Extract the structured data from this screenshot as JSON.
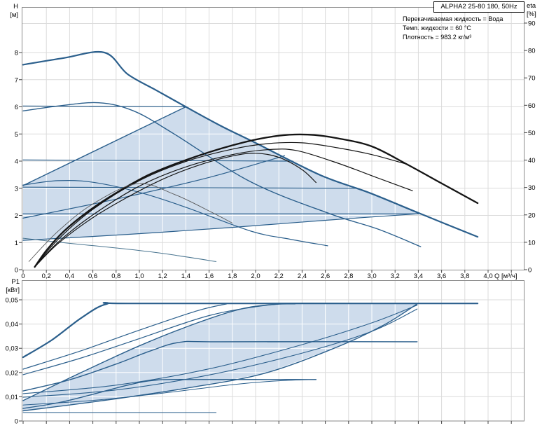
{
  "window": {
    "title_box_label": "ALPHA2 25-80 180, 50Hz"
  },
  "info_panel": {
    "lines": [
      "Перекачиваемая жидкость = Вода",
      "Темп. жидкости = 60 °C",
      "Плотность = 983.2 кг/м³"
    ]
  },
  "axis_titles": {
    "head": "H",
    "head_unit": "[м]",
    "eff": "eta",
    "eff_unit": "[%]",
    "flow_unit_label": "Q [м³/ч]",
    "power": "P1",
    "power_unit": "[кВт]"
  },
  "colors": {
    "curve_blue": "#2B5F8C",
    "curve_black": "#141414",
    "curve_faint": "#555555",
    "curve_min": "#4A7590",
    "fill_light_blue": "#CEDCEC",
    "grid": "#DBDBDB",
    "grid_in_fill": "#FFFFFF",
    "frame": "#8A8A8A",
    "tick": "#444444",
    "text": "#000000"
  },
  "chart_data": [
    {
      "type": "line",
      "panel": "qh",
      "title": "ALPHA2 25-80 180, 50Hz",
      "xlabel": "Q [м³/ч]",
      "ylabel_left": "H [м]",
      "ylabel_right": "eta [%]",
      "xlim": [
        0,
        4.31
      ],
      "ylim_left": [
        0,
        9.68
      ],
      "ylim_right": [
        0,
        95.9
      ],
      "grid": true,
      "x_tick_step": 0.2,
      "x_tick_labels": [
        "0",
        "0,2",
        "0,4",
        "0,6",
        "0,8",
        "1,0",
        "1,2",
        "1,4",
        "1,6",
        "1,8",
        "2,0",
        "2,2",
        "2,4",
        "2,6",
        "2,8",
        "3,0",
        "3,2",
        "3,4",
        "3,6",
        "3,8",
        "4,0"
      ],
      "y_tick_labels_left": [
        "0",
        "1",
        "2",
        "3",
        "4",
        "5",
        "6",
        "7",
        "8"
      ],
      "y_tick_labels_right": [
        "0",
        "10",
        "20",
        "30",
        "40",
        "50",
        "60",
        "70",
        "80",
        "90"
      ],
      "control_range_polygon": [
        [
          0,
          1.08
        ],
        [
          0,
          3.1
        ],
        [
          1.4,
          6.0
        ],
        [
          2.0,
          4.67
        ],
        [
          2.56,
          3.48
        ],
        [
          2.98,
          2.83
        ],
        [
          3.4,
          2.06
        ],
        [
          2.6,
          1.82
        ],
        [
          1.8,
          1.56
        ],
        [
          0.9,
          1.3
        ]
      ],
      "series": [
        {
          "name": "qh-max-speed-III",
          "axis": "H",
          "color": "blue",
          "width": 2.2,
          "points": [
            [
              0,
              7.55
            ],
            [
              0.35,
              7.8
            ],
            [
              0.7,
              8.0
            ],
            [
              0.9,
              7.2
            ],
            [
              1.15,
              6.6
            ],
            [
              1.4,
              6.0
            ],
            [
              1.7,
              5.3
            ],
            [
              2.0,
              4.67
            ],
            [
              2.56,
              3.48
            ],
            [
              2.98,
              2.83
            ],
            [
              3.43,
              2.04
            ],
            [
              3.91,
              1.21
            ]
          ]
        },
        {
          "name": "qh-speed-II",
          "axis": "H",
          "color": "blue",
          "width": 1.4,
          "points": [
            [
              0,
              5.85
            ],
            [
              0.3,
              6.03
            ],
            [
              0.65,
              6.15
            ],
            [
              0.95,
              5.85
            ],
            [
              1.3,
              5.0
            ],
            [
              1.96,
              3.23
            ],
            [
              2.64,
              2.06
            ],
            [
              3.05,
              1.5
            ],
            [
              3.42,
              0.85
            ]
          ]
        },
        {
          "name": "qh-speed-I",
          "axis": "H",
          "color": "blue",
          "width": 1.2,
          "points": [
            [
              0,
              3.12
            ],
            [
              0.3,
              3.28
            ],
            [
              0.6,
              3.22
            ],
            [
              1.0,
              2.85
            ],
            [
              1.4,
              2.3
            ],
            [
              1.96,
              1.42
            ],
            [
              2.3,
              1.12
            ],
            [
              2.62,
              0.88
            ]
          ]
        },
        {
          "name": "prop-pressure-3",
          "axis": "H",
          "color": "blue",
          "width": 1.4,
          "points": [
            [
              0,
              3.1
            ],
            [
              1.4,
              6.0
            ]
          ]
        },
        {
          "name": "prop-pressure-2",
          "axis": "H",
          "color": "blue",
          "width": 1.2,
          "points": [
            [
              0,
              1.9
            ],
            [
              0.8,
              2.6
            ],
            [
              1.6,
              3.4
            ],
            [
              2.25,
              4.2
            ]
          ]
        },
        {
          "name": "prop-pressure-1",
          "axis": "H",
          "color": "blue",
          "width": 1.2,
          "points": [
            [
              0,
              1.08
            ],
            [
              0.9,
              1.3
            ],
            [
              1.8,
              1.56
            ],
            [
              2.6,
              1.82
            ],
            [
              3.4,
              2.06
            ]
          ]
        },
        {
          "name": "const-pressure-6m",
          "axis": "H",
          "color": "blue",
          "width": 1.2,
          "points": [
            [
              0,
              6.03
            ],
            [
              1.4,
              6.0
            ]
          ]
        },
        {
          "name": "const-pressure-4m",
          "axis": "H",
          "color": "blue",
          "width": 1.2,
          "points": [
            [
              0,
              4.04
            ],
            [
              2.32,
              4.0
            ]
          ]
        },
        {
          "name": "const-pressure-3m",
          "axis": "H",
          "color": "blue",
          "width": 1.2,
          "points": [
            [
              0,
              3.04
            ],
            [
              2.86,
              3.0
            ]
          ]
        },
        {
          "name": "const-pressure-2m",
          "axis": "H",
          "color": "blue",
          "width": 1.2,
          "points": [
            [
              0,
              2.06
            ],
            [
              3.4,
              2.06
            ]
          ]
        },
        {
          "name": "qh-min-speed",
          "axis": "H",
          "color": "min",
          "width": 1,
          "points": [
            [
              0,
              1.16
            ],
            [
              0.4,
              0.97
            ],
            [
              0.8,
              0.8
            ],
            [
              1.2,
              0.6
            ],
            [
              1.66,
              0.3
            ]
          ]
        },
        {
          "name": "eta-max",
          "axis": "eta",
          "color": "black",
          "width": 2.3,
          "points": [
            [
              0.1,
              1
            ],
            [
              0.2,
              7
            ],
            [
              0.35,
              14
            ],
            [
              0.55,
              21
            ],
            [
              0.8,
              28
            ],
            [
              1.1,
              35
            ],
            [
              1.5,
              41.5
            ],
            [
              1.9,
              46.5
            ],
            [
              2.2,
              48.9
            ],
            [
              2.45,
              49.3
            ],
            [
              2.7,
              48
            ],
            [
              3.0,
              45
            ],
            [
              3.3,
              38.5
            ],
            [
              3.6,
              31.5
            ],
            [
              3.91,
              24.3
            ]
          ]
        },
        {
          "name": "eta-2",
          "axis": "eta",
          "color": "black",
          "width": 1.2,
          "points": [
            [
              0.1,
              1
            ],
            [
              0.3,
              11
            ],
            [
              0.6,
              22
            ],
            [
              1.0,
              32.5
            ],
            [
              1.4,
              39.5
            ],
            [
              1.8,
              44
            ],
            [
              2.1,
              46
            ],
            [
              2.4,
              46.3
            ],
            [
              2.7,
              44.5
            ],
            [
              3.0,
              42
            ],
            [
              3.3,
              38.5
            ]
          ]
        },
        {
          "name": "eta-3",
          "axis": "eta",
          "color": "black",
          "width": 1.2,
          "points": [
            [
              0.1,
              1
            ],
            [
              0.3,
              10
            ],
            [
              0.6,
              20
            ],
            [
              1.0,
              30.5
            ],
            [
              1.4,
              37.5
            ],
            [
              1.8,
              42
            ],
            [
              2.1,
              43.8
            ],
            [
              2.35,
              43.5
            ],
            [
              2.7,
              39
            ],
            [
              3.05,
              33.5
            ],
            [
              3.35,
              28.8
            ]
          ]
        },
        {
          "name": "eta-4",
          "axis": "eta",
          "color": "black",
          "width": 1.2,
          "points": [
            [
              0.1,
              1
            ],
            [
              0.3,
              9.5
            ],
            [
              0.6,
              19
            ],
            [
              0.9,
              26.5
            ],
            [
              1.2,
              33
            ],
            [
              1.5,
              38
            ],
            [
              1.8,
              41.5
            ],
            [
              2.0,
              42.5
            ],
            [
              2.2,
              41
            ],
            [
              2.4,
              36.5
            ],
            [
              2.52,
              31.8
            ]
          ]
        },
        {
          "name": "eta-min",
          "axis": "eta",
          "color": "faint",
          "width": 0.9,
          "points": [
            [
              0.05,
              3
            ],
            [
              0.3,
              14
            ],
            [
              0.6,
              24
            ],
            [
              0.98,
              31.4
            ],
            [
              1.3,
              27.5
            ],
            [
              1.62,
              21
            ],
            [
              1.8,
              17
            ]
          ]
        }
      ]
    },
    {
      "type": "line",
      "panel": "power",
      "title": "P1 power curves",
      "xlabel": "Q [м³/ч]",
      "ylabel_left": "P1 [кВт]",
      "xlim": [
        0,
        4.31
      ],
      "ylim": [
        0,
        0.0581
      ],
      "grid": true,
      "x_tick_step": 0.2,
      "y_tick_labels": [
        "0",
        "0,01",
        "0,02",
        "0,03",
        "0,04",
        "0,05"
      ],
      "control_range_polygon": [
        [
          0,
          0.0042
        ],
        [
          0,
          0.0084
        ],
        [
          0.5,
          0.02
        ],
        [
          1.0,
          0.031
        ],
        [
          1.5,
          0.0405
        ],
        [
          1.9,
          0.0465
        ],
        [
          2.2,
          0.0483
        ],
        [
          3.39,
          0.0483
        ],
        [
          3.1,
          0.0395
        ],
        [
          2.7,
          0.0305
        ],
        [
          2.08,
          0.0197
        ],
        [
          1.4,
          0.0135
        ],
        [
          0.7,
          0.0085
        ]
      ],
      "series": [
        {
          "name": "p1-max-speed-III",
          "color": "blue",
          "width": 2.2,
          "points": [
            [
              0,
              0.0263
            ],
            [
              0.25,
              0.0335
            ],
            [
              0.5,
              0.0425
            ],
            [
              0.72,
              0.0483
            ],
            [
              1.0,
              0.0485
            ],
            [
              3.91,
              0.0485
            ]
          ]
        },
        {
          "name": "p1-rise-a",
          "color": "blue",
          "width": 1.2,
          "points": [
            [
              0,
              0.0214
            ],
            [
              0.5,
              0.029
            ],
            [
              1.0,
              0.0375
            ],
            [
              1.5,
              0.0455
            ],
            [
              1.75,
              0.0483
            ]
          ]
        },
        {
          "name": "p1-rise-b",
          "color": "blue",
          "width": 1.2,
          "points": [
            [
              0,
              0.0191
            ],
            [
              0.5,
              0.026
            ],
            [
              1.0,
              0.034
            ],
            [
              1.6,
              0.0435
            ],
            [
              2.1,
              0.0478
            ],
            [
              2.34,
              0.0483
            ]
          ]
        },
        {
          "name": "p1-control-top",
          "color": "blue",
          "width": 1.4,
          "points": [
            [
              0,
              0.0084
            ],
            [
              0.5,
              0.02
            ],
            [
              1.0,
              0.031
            ],
            [
              1.5,
              0.0405
            ],
            [
              1.9,
              0.0465
            ],
            [
              2.2,
              0.0483
            ]
          ]
        },
        {
          "name": "p1-control-bottom",
          "color": "blue",
          "width": 1.4,
          "points": [
            [
              0,
              0.0042
            ],
            [
              0.7,
              0.0085
            ],
            [
              1.4,
              0.0135
            ],
            [
              2.08,
              0.0197
            ],
            [
              2.7,
              0.0305
            ],
            [
              3.1,
              0.0395
            ],
            [
              3.39,
              0.0483
            ]
          ]
        },
        {
          "name": "p1-mode-a",
          "color": "blue",
          "width": 1.1,
          "points": [
            [
              0,
              0.0113
            ],
            [
              0.8,
              0.0148
            ],
            [
              1.6,
              0.0215
            ],
            [
              2.4,
              0.0315
            ],
            [
              3.0,
              0.0405
            ],
            [
              3.39,
              0.0478
            ]
          ]
        },
        {
          "name": "p1-mode-b",
          "color": "blue",
          "width": 1.1,
          "points": [
            [
              0,
              0.0098
            ],
            [
              0.8,
              0.0128
            ],
            [
              1.6,
              0.019
            ],
            [
              2.4,
              0.028
            ],
            [
              3.0,
              0.037
            ],
            [
              3.39,
              0.0462
            ]
          ]
        },
        {
          "name": "p1-speed-II",
          "color": "blue",
          "width": 1.4,
          "points": [
            [
              0,
              0.0124
            ],
            [
              0.4,
              0.017
            ],
            [
              0.8,
              0.0235
            ],
            [
              1.1,
              0.029
            ],
            [
              1.35,
              0.0325
            ],
            [
              1.7,
              0.0327
            ],
            [
              3.39,
              0.0327
            ]
          ]
        },
        {
          "name": "p1-speed-I",
          "color": "blue",
          "width": 1.4,
          "points": [
            [
              0,
              0.0052
            ],
            [
              0.3,
              0.0075
            ],
            [
              0.6,
              0.011
            ],
            [
              0.9,
              0.0148
            ],
            [
              1.15,
              0.0169
            ],
            [
              1.5,
              0.0171
            ],
            [
              2.52,
              0.0171
            ]
          ]
        },
        {
          "name": "p1-mode-c",
          "color": "blue",
          "width": 1,
          "points": [
            [
              0,
              0.0066
            ],
            [
              0.6,
              0.0085
            ],
            [
              1.2,
              0.0115
            ],
            [
              1.8,
              0.015
            ],
            [
              2.2,
              0.0166
            ],
            [
              2.52,
              0.0171
            ]
          ]
        },
        {
          "name": "p1-min-speed",
          "color": "blue",
          "width": 1,
          "points": [
            [
              0,
              0.0035
            ],
            [
              1.66,
              0.0035
            ]
          ]
        }
      ]
    }
  ]
}
